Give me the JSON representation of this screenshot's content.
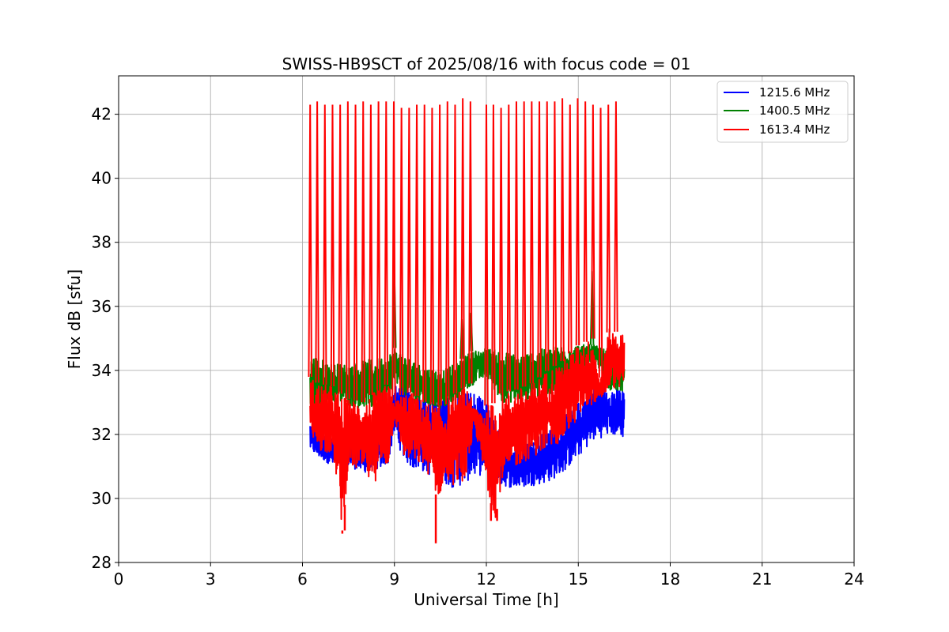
{
  "chart_data": {
    "type": "line",
    "title": "SWISS-HB9SCT of 2025/08/16 with focus code = 01",
    "xlabel": "Universal Time [h]",
    "ylabel": "Flux dB [sfu]",
    "xlim": [
      0,
      24
    ],
    "ylim": [
      28,
      43.2
    ],
    "xticks": [
      0,
      3,
      6,
      9,
      12,
      15,
      18,
      21,
      24
    ],
    "yticks": [
      28,
      30,
      32,
      34,
      36,
      38,
      40,
      42
    ],
    "grid": true,
    "legend_position": "top-right",
    "series": [
      {
        "name": "1215.6 MHz",
        "color": "#0000ff",
        "x": [
          6.25,
          6.5,
          7.0,
          7.5,
          8.0,
          8.5,
          8.8,
          9.0,
          9.3,
          9.6,
          10.0,
          10.5,
          11.0,
          11.5,
          12.0,
          12.5,
          13.0,
          13.5,
          14.0,
          14.5,
          15.0,
          15.5,
          16.0,
          16.5
        ],
        "low": [
          31.5,
          31.3,
          31.0,
          31.0,
          30.8,
          30.9,
          31.1,
          32.0,
          31.2,
          30.9,
          30.8,
          30.5,
          30.3,
          30.6,
          30.8,
          30.4,
          30.3,
          30.4,
          30.5,
          30.8,
          31.3,
          31.8,
          32.0,
          31.9
        ],
        "high": [
          32.4,
          32.1,
          32.0,
          32.0,
          31.9,
          32.2,
          32.4,
          33.5,
          33.6,
          33.5,
          33.5,
          33.4,
          33.4,
          33.4,
          33.0,
          31.9,
          31.8,
          31.9,
          32.1,
          32.5,
          33.0,
          33.6,
          33.5,
          33.4
        ]
      },
      {
        "name": "1400.5 MHz",
        "color": "#008000",
        "x": [
          6.25,
          6.5,
          7.0,
          7.5,
          8.0,
          8.5,
          8.8,
          9.0,
          9.3,
          9.6,
          10.0,
          10.5,
          11.0,
          11.5,
          12.0,
          12.5,
          13.0,
          13.5,
          14.0,
          14.5,
          15.0,
          15.5,
          16.0,
          16.5
        ],
        "low": [
          32.6,
          32.9,
          33.0,
          32.9,
          32.8,
          32.8,
          32.9,
          33.6,
          33.2,
          33.0,
          32.9,
          32.8,
          32.9,
          33.5,
          33.8,
          33.0,
          33.0,
          33.1,
          33.2,
          33.4,
          33.8,
          34.4,
          33.4,
          33.3
        ],
        "high": [
          34.6,
          34.4,
          34.2,
          34.2,
          34.3,
          34.4,
          34.5,
          34.7,
          34.5,
          34.3,
          34.1,
          34.0,
          34.2,
          34.6,
          34.7,
          34.6,
          34.5,
          34.6,
          34.7,
          34.8,
          34.8,
          34.8,
          34.6,
          34.5
        ],
        "spikes": [
          {
            "x": 9.0,
            "y": 37.0
          },
          {
            "x": 11.2,
            "y": 35.6
          },
          {
            "x": 11.5,
            "y": 35.8
          },
          {
            "x": 15.45,
            "y": 37.1
          }
        ]
      },
      {
        "name": "1613.4 MHz",
        "color": "#ff0000",
        "x": [
          6.25,
          6.5,
          7.0,
          7.3,
          7.5,
          8.0,
          8.3,
          8.5,
          8.8,
          9.0,
          9.3,
          9.6,
          10.0,
          10.4,
          10.7,
          11.0,
          11.5,
          11.55,
          12.0,
          12.3,
          12.5,
          13.0,
          13.5,
          14.0,
          14.5,
          15.0,
          15.5,
          15.7,
          16.0,
          16.5
        ],
        "low": [
          31.7,
          31.5,
          31.4,
          29.0,
          31.0,
          30.8,
          30.3,
          30.9,
          31.0,
          32.5,
          31.3,
          31.1,
          31.0,
          30.0,
          30.5,
          30.4,
          30.7,
          32.6,
          30.3,
          29.4,
          30.5,
          31.0,
          31.3,
          31.5,
          31.8,
          32.5,
          33.0,
          33.0,
          33.4,
          33.5
        ],
        "high": [
          33.8,
          33.6,
          33.5,
          33.2,
          33.1,
          33.0,
          33.3,
          33.4,
          33.6,
          33.0,
          33.3,
          33.3,
          33.0,
          32.9,
          32.9,
          33.3,
          33.6,
          32.8,
          32.9,
          33.0,
          33.3,
          33.4,
          33.6,
          34.0,
          34.3,
          34.8,
          35.0,
          33.6,
          35.3,
          35.1
        ],
        "deep_dips": [
          {
            "x": 7.3,
            "y": 28.9
          },
          {
            "x": 7.38,
            "y": 29.0
          },
          {
            "x": 10.35,
            "y": 28.6
          },
          {
            "x": 12.15,
            "y": 29.3
          },
          {
            "x": 12.35,
            "y": 29.3
          }
        ],
        "spikes": [
          {
            "x": 6.25,
            "y": 42.3
          },
          {
            "x": 6.48,
            "y": 42.4
          },
          {
            "x": 6.73,
            "y": 42.3
          },
          {
            "x": 6.98,
            "y": 42.3
          },
          {
            "x": 7.23,
            "y": 42.3
          },
          {
            "x": 7.48,
            "y": 42.4
          },
          {
            "x": 7.73,
            "y": 42.3
          },
          {
            "x": 7.98,
            "y": 42.4
          },
          {
            "x": 8.23,
            "y": 42.3
          },
          {
            "x": 8.48,
            "y": 42.4
          },
          {
            "x": 8.73,
            "y": 42.4
          },
          {
            "x": 8.98,
            "y": 42.4
          },
          {
            "x": 9.23,
            "y": 42.2
          },
          {
            "x": 9.48,
            "y": 42.2
          },
          {
            "x": 9.73,
            "y": 42.3
          },
          {
            "x": 9.98,
            "y": 42.3
          },
          {
            "x": 10.23,
            "y": 42.2
          },
          {
            "x": 10.48,
            "y": 42.3
          },
          {
            "x": 10.73,
            "y": 42.4
          },
          {
            "x": 10.98,
            "y": 42.3
          },
          {
            "x": 11.23,
            "y": 42.5
          },
          {
            "x": 11.48,
            "y": 42.4
          },
          {
            "x": 12.0,
            "y": 42.3
          },
          {
            "x": 12.23,
            "y": 42.3
          },
          {
            "x": 12.48,
            "y": 42.2
          },
          {
            "x": 12.73,
            "y": 42.3
          },
          {
            "x": 12.98,
            "y": 42.4
          },
          {
            "x": 13.23,
            "y": 42.4
          },
          {
            "x": 13.48,
            "y": 42.4
          },
          {
            "x": 13.73,
            "y": 42.4
          },
          {
            "x": 13.98,
            "y": 42.4
          },
          {
            "x": 14.23,
            "y": 42.4
          },
          {
            "x": 14.48,
            "y": 42.5
          },
          {
            "x": 14.73,
            "y": 42.3
          },
          {
            "x": 14.98,
            "y": 42.5
          },
          {
            "x": 15.23,
            "y": 42.4
          },
          {
            "x": 15.48,
            "y": 42.3
          },
          {
            "x": 15.73,
            "y": 42.2
          },
          {
            "x": 15.98,
            "y": 42.3
          },
          {
            "x": 16.23,
            "y": 42.4
          }
        ]
      }
    ]
  }
}
